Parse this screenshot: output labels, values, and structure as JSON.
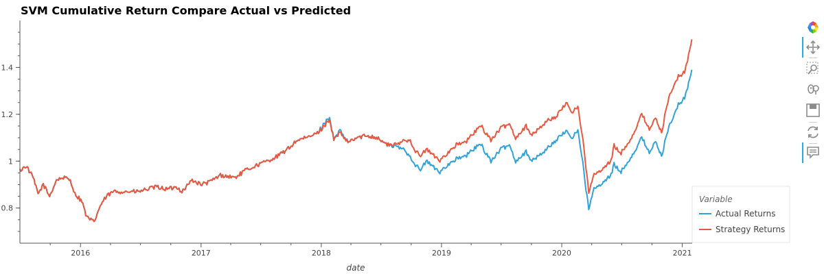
{
  "chart_data": {
    "type": "line",
    "title": "SVM Cumulative Return Compare Actual vs Predicted",
    "xlabel": "date",
    "ylabel": "",
    "xlim": [
      "2015-07-01",
      "2021-01-31"
    ],
    "ylim": [
      0.65,
      1.6
    ],
    "x_ticks": [
      "2016",
      "2017",
      "2018",
      "2019",
      "2020",
      "2021"
    ],
    "y_ticks": [
      0.8,
      1,
      1.2,
      1.4
    ],
    "y_tick_labels": [
      "0.8",
      "1",
      "1.2",
      "1.4"
    ],
    "grid": false,
    "legend": {
      "title": "Variable",
      "placement": "bottom-right-outside"
    },
    "series": [
      {
        "name": "Actual Returns",
        "color": "#30a2da",
        "points": [
          [
            "2015-07-01",
            0.96
          ],
          [
            "2015-07-20",
            0.98
          ],
          [
            "2015-08-10",
            0.93
          ],
          [
            "2015-08-25",
            0.86
          ],
          [
            "2015-09-10",
            0.9
          ],
          [
            "2015-09-29",
            0.85
          ],
          [
            "2015-10-20",
            0.92
          ],
          [
            "2015-11-10",
            0.93
          ],
          [
            "2015-12-01",
            0.92
          ],
          [
            "2015-12-15",
            0.86
          ],
          [
            "2016-01-05",
            0.83
          ],
          [
            "2016-01-20",
            0.76
          ],
          [
            "2016-02-11",
            0.74
          ],
          [
            "2016-03-01",
            0.81
          ],
          [
            "2016-03-20",
            0.85
          ],
          [
            "2016-04-10",
            0.87
          ],
          [
            "2016-05-01",
            0.87
          ],
          [
            "2016-06-01",
            0.87
          ],
          [
            "2016-06-27",
            0.87
          ],
          [
            "2016-07-20",
            0.88
          ],
          [
            "2016-08-20",
            0.89
          ],
          [
            "2016-09-20",
            0.88
          ],
          [
            "2016-10-20",
            0.89
          ],
          [
            "2016-11-04",
            0.87
          ],
          [
            "2016-12-05",
            0.92
          ],
          [
            "2016-12-31",
            0.9
          ],
          [
            "2017-01-25",
            0.91
          ],
          [
            "2017-03-01",
            0.94
          ],
          [
            "2017-04-15",
            0.93
          ],
          [
            "2017-05-15",
            0.96
          ],
          [
            "2017-06-15",
            0.98
          ],
          [
            "2017-07-20",
            1.0
          ],
          [
            "2017-08-20",
            1.02
          ],
          [
            "2017-09-20",
            1.05
          ],
          [
            "2017-10-20",
            1.09
          ],
          [
            "2017-11-20",
            1.1
          ],
          [
            "2017-12-20",
            1.12
          ],
          [
            "2018-01-10",
            1.16
          ],
          [
            "2018-01-26",
            1.19
          ],
          [
            "2018-02-08",
            1.09
          ],
          [
            "2018-02-26",
            1.13
          ],
          [
            "2018-03-23",
            1.08
          ],
          [
            "2018-04-20",
            1.1
          ],
          [
            "2018-05-20",
            1.11
          ],
          [
            "2018-06-20",
            1.1
          ],
          [
            "2018-07-20",
            1.07
          ],
          [
            "2018-08-20",
            1.06
          ],
          [
            "2018-09-10",
            1.05
          ],
          [
            "2018-09-28",
            1.02
          ],
          [
            "2018-10-11",
            0.99
          ],
          [
            "2018-10-29",
            0.96
          ],
          [
            "2018-11-15",
            1.0
          ],
          [
            "2018-12-05",
            0.98
          ],
          [
            "2018-12-24",
            0.95
          ],
          [
            "2019-01-15",
            0.98
          ],
          [
            "2019-02-15",
            1.01
          ],
          [
            "2019-03-15",
            1.02
          ],
          [
            "2019-04-15",
            1.06
          ],
          [
            "2019-05-01",
            1.07
          ],
          [
            "2019-05-31",
            1.0
          ],
          [
            "2019-06-30",
            1.05
          ],
          [
            "2019-07-26",
            1.07
          ],
          [
            "2019-08-14",
            1.0
          ],
          [
            "2019-09-15",
            1.04
          ],
          [
            "2019-10-03",
            1.0
          ],
          [
            "2019-11-15",
            1.05
          ],
          [
            "2019-12-15",
            1.09
          ],
          [
            "2020-01-17",
            1.13
          ],
          [
            "2020-01-31",
            1.1
          ],
          [
            "2020-02-19",
            1.13
          ],
          [
            "2020-03-05",
            1.0
          ],
          [
            "2020-03-12",
            0.9
          ],
          [
            "2020-03-23",
            0.8
          ],
          [
            "2020-04-08",
            0.88
          ],
          [
            "2020-04-30",
            0.9
          ],
          [
            "2020-05-30",
            0.94
          ],
          [
            "2020-06-08",
            0.99
          ],
          [
            "2020-06-26",
            0.95
          ],
          [
            "2020-07-31",
            1.02
          ],
          [
            "2020-08-31",
            1.1
          ],
          [
            "2020-09-23",
            1.04
          ],
          [
            "2020-10-12",
            1.08
          ],
          [
            "2020-10-30",
            1.02
          ],
          [
            "2020-11-15",
            1.12
          ],
          [
            "2020-12-01",
            1.18
          ],
          [
            "2020-12-20",
            1.24
          ],
          [
            "2021-01-08",
            1.27
          ],
          [
            "2021-01-20",
            1.33
          ],
          [
            "2021-01-30",
            1.39
          ]
        ]
      },
      {
        "name": "Strategy Returns",
        "color": "#e9573f",
        "points": [
          [
            "2015-07-01",
            0.96
          ],
          [
            "2015-07-20",
            0.98
          ],
          [
            "2015-08-10",
            0.93
          ],
          [
            "2015-08-25",
            0.86
          ],
          [
            "2015-09-10",
            0.9
          ],
          [
            "2015-09-29",
            0.85
          ],
          [
            "2015-10-20",
            0.92
          ],
          [
            "2015-11-10",
            0.93
          ],
          [
            "2015-12-01",
            0.92
          ],
          [
            "2015-12-15",
            0.86
          ],
          [
            "2016-01-05",
            0.83
          ],
          [
            "2016-01-20",
            0.76
          ],
          [
            "2016-02-11",
            0.74
          ],
          [
            "2016-03-01",
            0.81
          ],
          [
            "2016-03-20",
            0.85
          ],
          [
            "2016-04-10",
            0.87
          ],
          [
            "2016-05-01",
            0.87
          ],
          [
            "2016-06-01",
            0.87
          ],
          [
            "2016-06-27",
            0.87
          ],
          [
            "2016-07-20",
            0.88
          ],
          [
            "2016-08-20",
            0.89
          ],
          [
            "2016-09-20",
            0.88
          ],
          [
            "2016-10-20",
            0.89
          ],
          [
            "2016-11-04",
            0.87
          ],
          [
            "2016-12-05",
            0.92
          ],
          [
            "2016-12-31",
            0.9
          ],
          [
            "2017-01-25",
            0.91
          ],
          [
            "2017-03-01",
            0.94
          ],
          [
            "2017-04-15",
            0.93
          ],
          [
            "2017-05-15",
            0.96
          ],
          [
            "2017-06-15",
            0.98
          ],
          [
            "2017-07-20",
            1.0
          ],
          [
            "2017-08-20",
            1.02
          ],
          [
            "2017-09-20",
            1.05
          ],
          [
            "2017-10-20",
            1.09
          ],
          [
            "2017-11-20",
            1.1
          ],
          [
            "2017-12-20",
            1.12
          ],
          [
            "2018-01-10",
            1.15
          ],
          [
            "2018-01-26",
            1.18
          ],
          [
            "2018-02-08",
            1.09
          ],
          [
            "2018-02-26",
            1.12
          ],
          [
            "2018-03-23",
            1.08
          ],
          [
            "2018-04-20",
            1.1
          ],
          [
            "2018-05-20",
            1.11
          ],
          [
            "2018-06-20",
            1.1
          ],
          [
            "2018-07-20",
            1.07
          ],
          [
            "2018-08-20",
            1.07
          ],
          [
            "2018-09-10",
            1.09
          ],
          [
            "2018-09-28",
            1.09
          ],
          [
            "2018-10-11",
            1.05
          ],
          [
            "2018-10-29",
            1.02
          ],
          [
            "2018-11-15",
            1.05
          ],
          [
            "2018-12-05",
            1.03
          ],
          [
            "2018-12-24",
            1.0
          ],
          [
            "2019-01-15",
            1.03
          ],
          [
            "2019-02-15",
            1.07
          ],
          [
            "2019-03-15",
            1.08
          ],
          [
            "2019-04-15",
            1.13
          ],
          [
            "2019-05-01",
            1.15
          ],
          [
            "2019-05-31",
            1.09
          ],
          [
            "2019-06-30",
            1.14
          ],
          [
            "2019-07-26",
            1.16
          ],
          [
            "2019-08-14",
            1.1
          ],
          [
            "2019-09-15",
            1.15
          ],
          [
            "2019-10-03",
            1.11
          ],
          [
            "2019-11-15",
            1.17
          ],
          [
            "2019-12-15",
            1.19
          ],
          [
            "2020-01-17",
            1.25
          ],
          [
            "2020-01-31",
            1.21
          ],
          [
            "2020-02-19",
            1.23
          ],
          [
            "2020-03-05",
            1.1
          ],
          [
            "2020-03-12",
            1.0
          ],
          [
            "2020-03-23",
            0.87
          ],
          [
            "2020-04-08",
            0.94
          ],
          [
            "2020-04-30",
            0.96
          ],
          [
            "2020-05-30",
            1.0
          ],
          [
            "2020-06-08",
            1.07
          ],
          [
            "2020-06-26",
            1.03
          ],
          [
            "2020-07-31",
            1.1
          ],
          [
            "2020-08-31",
            1.2
          ],
          [
            "2020-09-23",
            1.14
          ],
          [
            "2020-10-12",
            1.18
          ],
          [
            "2020-10-30",
            1.12
          ],
          [
            "2020-11-15",
            1.24
          ],
          [
            "2020-12-01",
            1.31
          ],
          [
            "2020-12-20",
            1.36
          ],
          [
            "2021-01-08",
            1.38
          ],
          [
            "2021-01-20",
            1.45
          ],
          [
            "2021-01-30",
            1.52
          ]
        ]
      }
    ]
  },
  "toolbar": {
    "tools": [
      {
        "name": "bokeh-logo-icon",
        "interactable": false
      },
      {
        "name": "pan-icon",
        "interactable": true,
        "active": true
      },
      {
        "name": "box-zoom-icon",
        "interactable": true
      },
      {
        "name": "wheel-zoom-icon",
        "interactable": true
      },
      {
        "name": "save-icon",
        "interactable": true
      },
      {
        "name": "reset-icon",
        "interactable": true
      },
      {
        "name": "hover-icon",
        "interactable": true,
        "active": true
      }
    ]
  }
}
